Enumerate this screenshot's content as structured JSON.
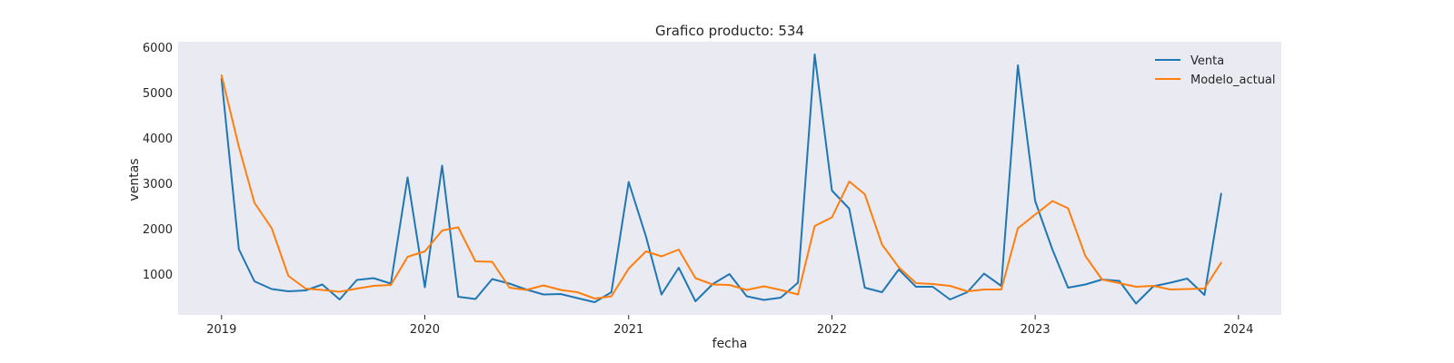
{
  "chart_data": {
    "type": "line",
    "title": "Grafico producto: 534",
    "xlabel": "fecha",
    "ylabel": "ventas",
    "x": [
      "2019-01",
      "2019-02",
      "2019-03",
      "2019-04",
      "2019-05",
      "2019-06",
      "2019-07",
      "2019-08",
      "2019-09",
      "2019-10",
      "2019-11",
      "2019-12",
      "2020-01",
      "2020-02",
      "2020-03",
      "2020-04",
      "2020-05",
      "2020-06",
      "2020-07",
      "2020-08",
      "2020-09",
      "2020-10",
      "2020-11",
      "2020-12",
      "2021-01",
      "2021-02",
      "2021-03",
      "2021-04",
      "2021-05",
      "2021-06",
      "2021-07",
      "2021-08",
      "2021-09",
      "2021-10",
      "2021-11",
      "2021-12",
      "2022-01",
      "2022-02",
      "2022-03",
      "2022-04",
      "2022-05",
      "2022-06",
      "2022-07",
      "2022-08",
      "2022-09",
      "2022-10",
      "2022-11",
      "2022-12",
      "2023-01",
      "2023-02",
      "2023-03",
      "2023-04",
      "2023-05",
      "2023-06",
      "2023-07",
      "2023-08",
      "2023-09",
      "2023-10",
      "2023-11",
      "2023-12"
    ],
    "xlim": [
      "2018-10-15",
      "2024-03-18"
    ],
    "x_ticks": [
      "2019",
      "2020",
      "2021",
      "2022",
      "2023",
      "2024"
    ],
    "ylim": [
      100,
      6120
    ],
    "y_ticks": [
      1000,
      2000,
      3000,
      4000,
      5000,
      6000
    ],
    "grid": false,
    "background": "#eaeaf2",
    "legend_position": "top-right",
    "series": [
      {
        "name": "Venta",
        "color": "#1f77b4",
        "values": [
          5300,
          1550,
          840,
          670,
          620,
          640,
          770,
          440,
          870,
          910,
          790,
          3130,
          710,
          3390,
          500,
          450,
          890,
          790,
          660,
          550,
          560,
          470,
          380,
          600,
          3030,
          1830,
          550,
          1140,
          400,
          780,
          1000,
          510,
          430,
          480,
          810,
          5840,
          2840,
          2440,
          700,
          600,
          1100,
          720,
          720,
          440,
          600,
          1010,
          740,
          5600,
          2610,
          1540,
          700,
          770,
          880,
          850,
          350,
          730,
          810,
          900,
          540,
          2770
        ]
      },
      {
        "name": "Modelo_actual",
        "color": "#ff7f0e",
        "values": [
          5380,
          3810,
          2570,
          2010,
          960,
          680,
          650,
          610,
          680,
          740,
          760,
          1380,
          1500,
          1960,
          2030,
          1280,
          1270,
          700,
          650,
          750,
          650,
          600,
          460,
          510,
          1120,
          1500,
          1390,
          1540,
          910,
          770,
          760,
          650,
          730,
          650,
          550,
          2060,
          2250,
          3040,
          2760,
          1650,
          1150,
          800,
          780,
          740,
          620,
          660,
          660,
          2010,
          2310,
          2610,
          2450,
          1400,
          880,
          800,
          720,
          740,
          660,
          670,
          680,
          1250
        ]
      }
    ]
  }
}
